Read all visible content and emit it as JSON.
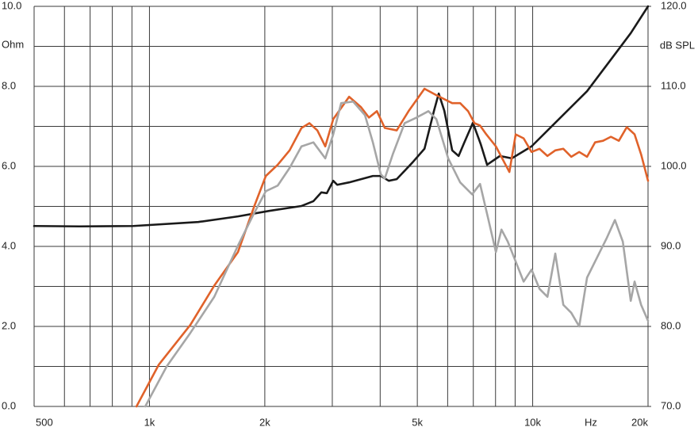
{
  "chart_data": {
    "type": "line",
    "y_label": "Ohm",
    "y2_label": "dB SPL",
    "x_unit": "Hz",
    "xscale": "log",
    "grid": true,
    "xlim": [
      500,
      20000
    ],
    "xticks": [
      500,
      {
        "value": 1000,
        "label": "1k"
      },
      {
        "value": 2000,
        "label": "2k"
      },
      {
        "value": 5000,
        "label": "5k"
      },
      {
        "value": 10000,
        "label": "10k"
      },
      {
        "value": 20000,
        "label": "20k"
      }
    ],
    "minor_xticks": [
      600,
      700,
      800,
      900,
      3000,
      4000,
      6000,
      7000,
      8000,
      9000
    ],
    "ylim": [
      0,
      10
    ],
    "yticks": [
      {
        "value": 0,
        "label": "0.0"
      },
      {
        "value": 2,
        "label": "2.0"
      },
      {
        "value": 4,
        "label": "4.0"
      },
      {
        "value": 6,
        "label": "6.0"
      },
      {
        "value": 8,
        "label": "8.0"
      },
      {
        "value": 10,
        "label": "10.0"
      }
    ],
    "minor_yticks": [
      1,
      3,
      5,
      7,
      9
    ],
    "y2lim": [
      70,
      120
    ],
    "y2ticks": [
      {
        "value": 70,
        "label": "70.0"
      },
      {
        "value": 80,
        "label": "80.0"
      },
      {
        "value": 90,
        "label": "90.0"
      },
      {
        "value": 100,
        "label": "100.0"
      },
      {
        "value": 110,
        "label": "110.0"
      },
      {
        "value": 120,
        "label": "120.0"
      }
    ],
    "series": [
      {
        "color": "#1a1a1a",
        "axis": "y",
        "x": [
          500,
          656,
          907,
          1341,
          1702,
          2060,
          2493,
          2678,
          2808,
          2903,
          3017,
          3090,
          3319,
          3828,
          4015,
          4212,
          4418,
          4860,
          5220,
          5527,
          5687,
          5881,
          6166,
          6408,
          6626,
          6982,
          7322,
          7605,
          8212,
          8819,
          9933,
          11455,
          13866,
          16000,
          18028,
          20000
        ],
        "values": [
          4.51,
          4.5,
          4.51,
          4.61,
          4.75,
          4.89,
          5.01,
          5.13,
          5.35,
          5.33,
          5.64,
          5.54,
          5.6,
          5.76,
          5.76,
          5.64,
          5.68,
          6.1,
          6.44,
          7.39,
          7.82,
          7.39,
          6.4,
          6.26,
          6.59,
          7.09,
          6.55,
          6.04,
          6.26,
          6.2,
          6.5,
          7.09,
          7.88,
          8.67,
          9.33,
          10.0
        ]
      },
      {
        "color": "#e0622a",
        "axis": "y2",
        "x": [
          925,
          1057,
          1279,
          1476,
          1702,
          1873,
          2012,
          2161,
          2321,
          2493,
          2614,
          2742,
          2876,
          3017,
          3319,
          3565,
          3739,
          3922,
          4113,
          4418,
          4744,
          5220,
          5606,
          5881,
          6166,
          6468,
          6784,
          7049,
          7289,
          7569,
          8017,
          8694,
          9030,
          9471,
          9933,
          10418,
          10928,
          11455,
          12022,
          12609,
          13226,
          13866,
          14547,
          15260,
          16000,
          16784,
          17603,
          18450,
          19185,
          20000
        ],
        "values": [
          70,
          75.2,
          80.2,
          85.1,
          89.3,
          94.9,
          98.8,
          100.2,
          102.0,
          104.8,
          105.4,
          104.5,
          102.5,
          105.9,
          108.7,
          107.4,
          106.1,
          106.9,
          104.8,
          104.5,
          106.9,
          109.7,
          108.9,
          108.4,
          107.9,
          107.9,
          106.9,
          105.4,
          105.1,
          104.0,
          102.5,
          99.3,
          104.0,
          103.5,
          101.8,
          102.2,
          101.3,
          102.0,
          102.2,
          101.2,
          101.8,
          101.2,
          103.0,
          103.2,
          103.7,
          103.2,
          104.9,
          104.0,
          101.5,
          98.2
        ]
      },
      {
        "color": "#a6a6a6",
        "axis": "y2",
        "x": [
          975,
          1109,
          1279,
          1476,
          1702,
          1873,
          2012,
          2161,
          2321,
          2493,
          2678,
          2876,
          3017,
          3164,
          3399,
          3651,
          3828,
          4015,
          4113,
          4314,
          4633,
          4976,
          5345,
          5606,
          6020,
          6468,
          6950,
          7289,
          7643,
          8017,
          8290,
          8610,
          9030,
          9471,
          9933,
          10418,
          10928,
          11455,
          12022,
          12609,
          13226,
          13866,
          14898,
          15626,
          16392,
          17188,
          18028,
          18450,
          19185,
          20000
        ],
        "values": [
          70,
          75.0,
          79.2,
          83.7,
          90.1,
          94.1,
          96.9,
          97.6,
          99.8,
          102.5,
          103.0,
          101.0,
          104.0,
          107.9,
          108.1,
          106.4,
          103.0,
          99.0,
          98.5,
          101.5,
          105.4,
          106.1,
          106.9,
          105.9,
          101.0,
          98.0,
          96.5,
          97.8,
          93.6,
          89.3,
          92.1,
          90.6,
          88.1,
          85.6,
          87.1,
          84.7,
          83.7,
          89.1,
          82.7,
          81.7,
          80.0,
          86.1,
          89.1,
          91.1,
          93.3,
          90.6,
          83.2,
          85.6,
          82.7,
          80.7
        ]
      }
    ]
  }
}
